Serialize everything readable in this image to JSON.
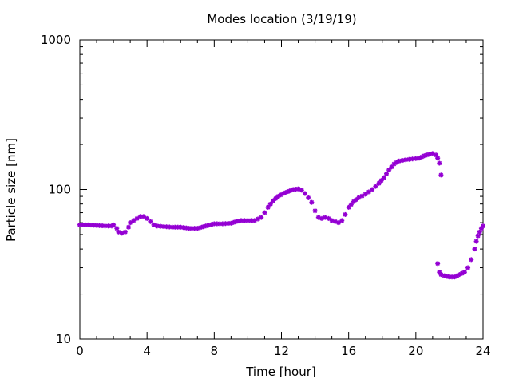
{
  "chart_data": {
    "type": "scatter",
    "title": "Modes location (3/19/19)",
    "xlabel": "Time [hour]",
    "ylabel": "Particle size [nm]",
    "xlim": [
      0,
      24
    ],
    "ylim": [
      10,
      1000
    ],
    "yscale": "log",
    "grid": false,
    "legend": "none",
    "marker_color": "#9400d3",
    "x_ticks": [
      {
        "value": 0,
        "label": "0"
      },
      {
        "value": 4,
        "label": "4"
      },
      {
        "value": 8,
        "label": "8"
      },
      {
        "value": 12,
        "label": "12"
      },
      {
        "value": 16,
        "label": "16"
      },
      {
        "value": 20,
        "label": "20"
      },
      {
        "value": 24,
        "label": "24"
      }
    ],
    "y_ticks": [
      {
        "value": 10,
        "label": "10"
      },
      {
        "value": 100,
        "label": "100"
      },
      {
        "value": 1000,
        "label": "1000"
      }
    ],
    "series": [
      {
        "points": [
          [
            0.0,
            58
          ],
          [
            0.5,
            58
          ],
          [
            1.0,
            57.5
          ],
          [
            1.5,
            57
          ],
          [
            1.9,
            57
          ],
          [
            2.0,
            58
          ],
          [
            2.2,
            55
          ],
          [
            2.3,
            52
          ],
          [
            2.5,
            51
          ],
          [
            2.7,
            52
          ],
          [
            2.9,
            56
          ],
          [
            3.0,
            60
          ],
          [
            3.2,
            62
          ],
          [
            3.4,
            64
          ],
          [
            3.6,
            66
          ],
          [
            3.8,
            66
          ],
          [
            4.0,
            64
          ],
          [
            4.2,
            61
          ],
          [
            4.4,
            58
          ],
          [
            4.6,
            57
          ],
          [
            5.0,
            56.5
          ],
          [
            5.5,
            56
          ],
          [
            6.0,
            56
          ],
          [
            6.5,
            55
          ],
          [
            7.0,
            55
          ],
          [
            7.5,
            57
          ],
          [
            8.0,
            59
          ],
          [
            8.5,
            59
          ],
          [
            9.0,
            59.5
          ],
          [
            9.3,
            61
          ],
          [
            9.6,
            62
          ],
          [
            10.0,
            62
          ],
          [
            10.4,
            62
          ],
          [
            10.8,
            65
          ],
          [
            11.0,
            70
          ],
          [
            11.2,
            76
          ],
          [
            11.5,
            84
          ],
          [
            11.8,
            90
          ],
          [
            12.1,
            94
          ],
          [
            12.4,
            97
          ],
          [
            12.7,
            100
          ],
          [
            13.0,
            101
          ],
          [
            13.2,
            99
          ],
          [
            13.4,
            94
          ],
          [
            13.6,
            88
          ],
          [
            13.8,
            82
          ],
          [
            14.0,
            72
          ],
          [
            14.2,
            65
          ],
          [
            14.4,
            64
          ],
          [
            14.6,
            65
          ],
          [
            14.8,
            64
          ],
          [
            15.0,
            62
          ],
          [
            15.2,
            61
          ],
          [
            15.4,
            60
          ],
          [
            15.6,
            62
          ],
          [
            15.8,
            68
          ],
          [
            16.0,
            76
          ],
          [
            16.3,
            83
          ],
          [
            16.6,
            88
          ],
          [
            17.0,
            93
          ],
          [
            17.4,
            100
          ],
          [
            17.8,
            110
          ],
          [
            18.1,
            120
          ],
          [
            18.4,
            135
          ],
          [
            18.7,
            148
          ],
          [
            19.0,
            155
          ],
          [
            19.4,
            158
          ],
          [
            19.8,
            160
          ],
          [
            20.2,
            162
          ],
          [
            20.5,
            168
          ],
          [
            20.8,
            172
          ],
          [
            21.0,
            174
          ],
          [
            21.2,
            170
          ],
          [
            21.3,
            162
          ],
          [
            21.4,
            150
          ],
          [
            21.5,
            125
          ],
          [
            21.3,
            32
          ],
          [
            21.4,
            28
          ],
          [
            21.5,
            27
          ],
          [
            21.7,
            26.5
          ],
          [
            22.0,
            26
          ],
          [
            22.3,
            26
          ],
          [
            22.6,
            27
          ],
          [
            22.9,
            28
          ],
          [
            23.1,
            30
          ],
          [
            23.3,
            34
          ],
          [
            23.5,
            40
          ],
          [
            23.6,
            45
          ],
          [
            23.7,
            49
          ],
          [
            23.8,
            52
          ],
          [
            23.9,
            55
          ],
          [
            24.0,
            57
          ]
        ]
      }
    ]
  }
}
